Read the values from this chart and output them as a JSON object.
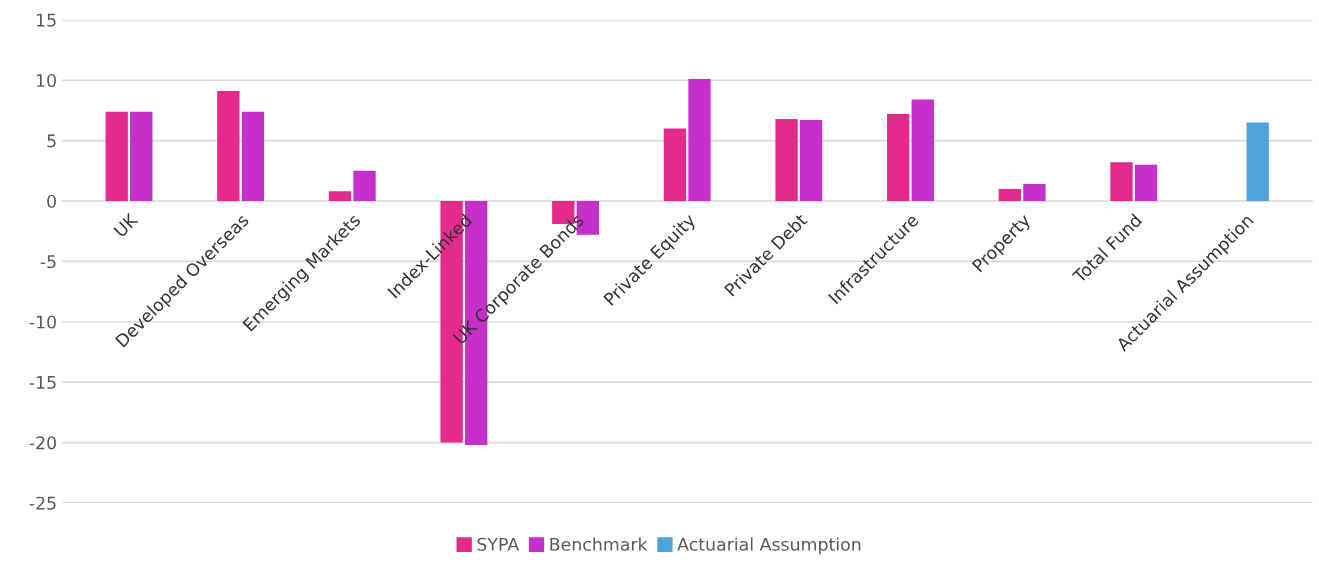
{
  "chart_data": {
    "type": "bar",
    "categories": [
      "UK",
      "Developed Overseas",
      "Emerging Markets",
      "Index-Linked",
      "UK Corporate Bonds",
      "Private Equity",
      "Private Debt",
      "Infrastructure",
      "Property",
      "Total Fund",
      "Actuarial Assumption"
    ],
    "series": [
      {
        "name": "SYPA",
        "color": "#e22b8c",
        "values": [
          7.4,
          9.1,
          0.8,
          -20.0,
          -1.9,
          6.0,
          6.8,
          7.2,
          1.0,
          3.2,
          null
        ]
      },
      {
        "name": "Benchmark",
        "color": "#c430c9",
        "values": [
          7.4,
          7.4,
          2.5,
          -20.2,
          -2.8,
          10.1,
          6.7,
          8.4,
          1.4,
          3.0,
          null
        ]
      },
      {
        "name": "Actuarial Assumption",
        "color": "#4ea3db",
        "values": [
          null,
          null,
          null,
          null,
          null,
          null,
          null,
          null,
          null,
          null,
          6.5
        ]
      }
    ],
    "ylim": [
      -25,
      15
    ],
    "yticks": [
      -25,
      -20,
      -15,
      -10,
      -5,
      0,
      5,
      10,
      15
    ],
    "grid": "y",
    "legend": "bottom"
  }
}
